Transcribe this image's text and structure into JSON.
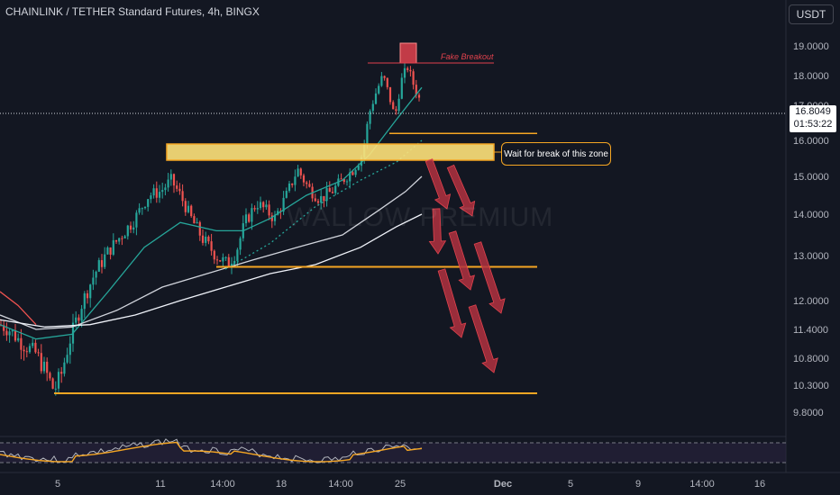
{
  "header": {
    "title": "CHAINLINK / TETHER Standard Futures, 4h, BINGX",
    "currency": "USDT"
  },
  "price_tag": {
    "price": "16.8049",
    "countdown": "01:53:22"
  },
  "annotations": {
    "fake_breakout": "Fake Breakout",
    "zone_callout": "Wait for break of this zone",
    "watermark": "WALLOW PREMIUM"
  },
  "colors": {
    "up": "#26a69a",
    "down": "#ef5350",
    "zone": "#f5a623",
    "fake": "#e2424d"
  },
  "chart_data": {
    "type": "candlestick",
    "y_ticks": [
      "19.0000",
      "18.0000",
      "17.0000",
      "16.0000",
      "15.0000",
      "14.0000",
      "13.0000",
      "12.0000",
      "11.4000",
      "10.8000",
      "10.3000",
      "9.8000"
    ],
    "x_ticks": [
      "5",
      "11",
      "14:00",
      "18",
      "14:00",
      "25",
      "Dec",
      "5",
      "9",
      "14:00",
      "16"
    ],
    "levels": [
      {
        "name": "support-low",
        "value": 10.15
      },
      {
        "name": "support-mid",
        "value": 12.75
      },
      {
        "name": "resistance-zone",
        "from": 15.45,
        "to": 15.9
      },
      {
        "name": "support-high",
        "value": 16.2
      }
    ]
  }
}
